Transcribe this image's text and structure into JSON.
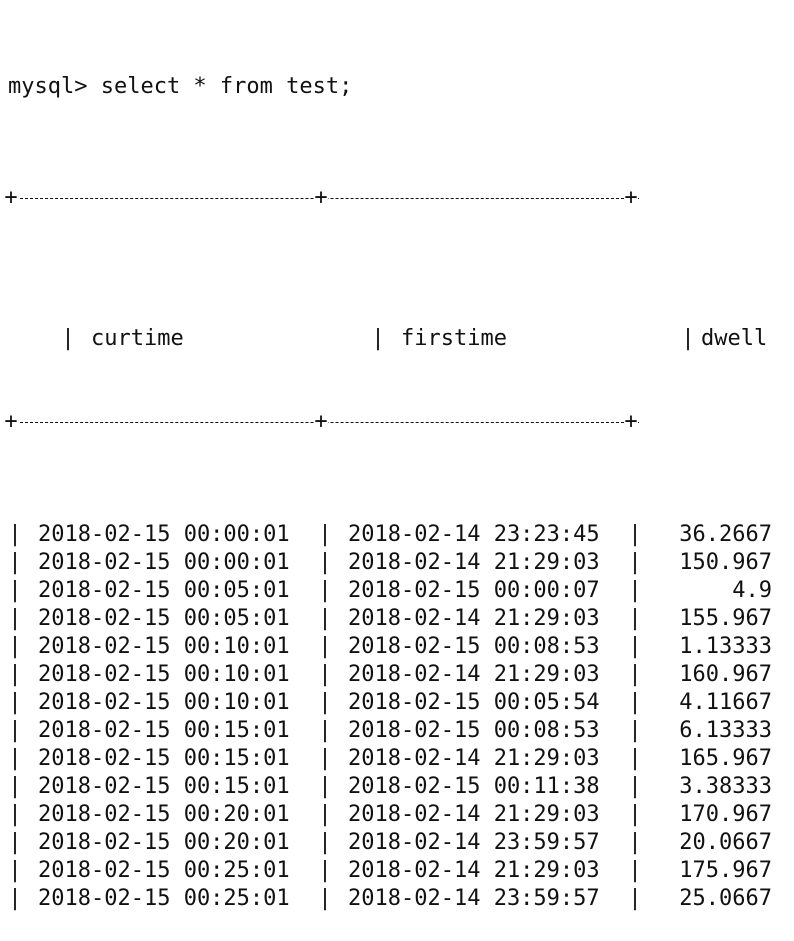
{
  "prompt": "mysql> select * from test;",
  "columns": [
    "curtime",
    "firstime",
    "dwell"
  ],
  "rows": [
    [
      "2018-02-15 00:00:01",
      "2018-02-14 23:23:45",
      "36.2667"
    ],
    [
      "2018-02-15 00:00:01",
      "2018-02-14 21:29:03",
      "150.967"
    ],
    [
      "2018-02-15 00:05:01",
      "2018-02-15 00:00:07",
      "4.9"
    ],
    [
      "2018-02-15 00:05:01",
      "2018-02-14 21:29:03",
      "155.967"
    ],
    [
      "2018-02-15 00:10:01",
      "2018-02-15 00:08:53",
      "1.13333"
    ],
    [
      "2018-02-15 00:10:01",
      "2018-02-14 21:29:03",
      "160.967"
    ],
    [
      "2018-02-15 00:10:01",
      "2018-02-15 00:05:54",
      "4.11667"
    ],
    [
      "2018-02-15 00:15:01",
      "2018-02-15 00:08:53",
      "6.13333"
    ],
    [
      "2018-02-15 00:15:01",
      "2018-02-14 21:29:03",
      "165.967"
    ],
    [
      "2018-02-15 00:15:01",
      "2018-02-15 00:11:38",
      "3.38333"
    ],
    [
      "2018-02-15 00:20:01",
      "2018-02-14 21:29:03",
      "170.967"
    ],
    [
      "2018-02-15 00:20:01",
      "2018-02-14 23:59:57",
      "20.0667"
    ],
    [
      "2018-02-15 00:25:01",
      "2018-02-14 21:29:03",
      "175.967"
    ],
    [
      "2018-02-15 00:25:01",
      "2018-02-14 23:59:57",
      "25.0667"
    ]
  ]
}
